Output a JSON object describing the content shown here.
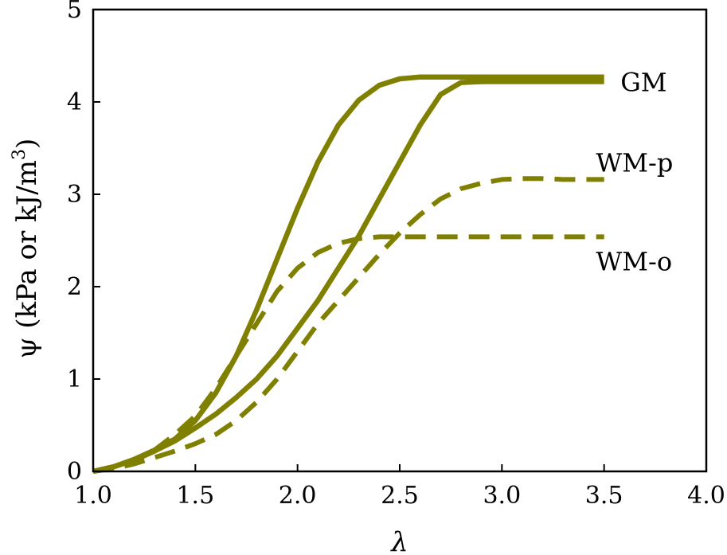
{
  "chart_data": {
    "type": "line",
    "xlabel": "λ",
    "ylabel_main": "ψ (kPa or kJ/m",
    "ylabel_sup": "3",
    "ylabel_tail": ")",
    "xlim": [
      1.0,
      4.0
    ],
    "ylim": [
      0,
      5
    ],
    "x_ticks": [
      "1.0",
      "1.5",
      "2.0",
      "2.5",
      "3.0",
      "3.5",
      "4.0"
    ],
    "y_ticks": [
      "0",
      "1",
      "2",
      "3",
      "4",
      "5"
    ],
    "grid": false,
    "color": "#808000",
    "series": [
      {
        "name": "GM",
        "style": "solid",
        "group": "GM",
        "points": [
          [
            1.0,
            0
          ],
          [
            1.1,
            0.05
          ],
          [
            1.2,
            0.13
          ],
          [
            1.3,
            0.23
          ],
          [
            1.4,
            0.35
          ],
          [
            1.5,
            0.55
          ],
          [
            1.6,
            0.85
          ],
          [
            1.7,
            1.25
          ],
          [
            1.8,
            1.75
          ],
          [
            1.9,
            2.3
          ],
          [
            2.0,
            2.85
          ],
          [
            2.1,
            3.35
          ],
          [
            2.2,
            3.75
          ],
          [
            2.3,
            4.02
          ],
          [
            2.4,
            4.18
          ],
          [
            2.5,
            4.25
          ],
          [
            2.6,
            4.27
          ],
          [
            2.8,
            4.27
          ],
          [
            3.0,
            4.27
          ],
          [
            3.2,
            4.27
          ],
          [
            3.5,
            4.27
          ]
        ]
      },
      {
        "name": "GM",
        "style": "solid",
        "group": "GM",
        "points": [
          [
            1.0,
            0
          ],
          [
            1.1,
            0.05
          ],
          [
            1.2,
            0.12
          ],
          [
            1.3,
            0.22
          ],
          [
            1.4,
            0.33
          ],
          [
            1.5,
            0.47
          ],
          [
            1.6,
            0.62
          ],
          [
            1.7,
            0.8
          ],
          [
            1.8,
            1.0
          ],
          [
            1.9,
            1.25
          ],
          [
            2.0,
            1.55
          ],
          [
            2.1,
            1.85
          ],
          [
            2.2,
            2.2
          ],
          [
            2.3,
            2.55
          ],
          [
            2.4,
            2.95
          ],
          [
            2.5,
            3.35
          ],
          [
            2.6,
            3.75
          ],
          [
            2.7,
            4.08
          ],
          [
            2.8,
            4.21
          ],
          [
            2.9,
            4.22
          ],
          [
            3.0,
            4.22
          ],
          [
            3.2,
            4.22
          ],
          [
            3.5,
            4.22
          ]
        ]
      },
      {
        "name": "WM-p",
        "style": "dashed",
        "group": "WM-p",
        "points": [
          [
            1.0,
            0
          ],
          [
            1.1,
            0.03
          ],
          [
            1.2,
            0.08
          ],
          [
            1.3,
            0.15
          ],
          [
            1.4,
            0.22
          ],
          [
            1.5,
            0.3
          ],
          [
            1.6,
            0.4
          ],
          [
            1.7,
            0.55
          ],
          [
            1.8,
            0.75
          ],
          [
            1.9,
            1.0
          ],
          [
            2.0,
            1.3
          ],
          [
            2.1,
            1.6
          ],
          [
            2.2,
            1.85
          ],
          [
            2.3,
            2.1
          ],
          [
            2.4,
            2.35
          ],
          [
            2.5,
            2.58
          ],
          [
            2.6,
            2.78
          ],
          [
            2.7,
            2.95
          ],
          [
            2.8,
            3.06
          ],
          [
            2.9,
            3.12
          ],
          [
            3.0,
            3.16
          ],
          [
            3.1,
            3.17
          ],
          [
            3.2,
            3.17
          ],
          [
            3.3,
            3.16
          ],
          [
            3.5,
            3.16
          ]
        ]
      },
      {
        "name": "WM-o",
        "style": "dashed",
        "group": "WM-o",
        "points": [
          [
            1.0,
            0
          ],
          [
            1.1,
            0.04
          ],
          [
            1.2,
            0.12
          ],
          [
            1.3,
            0.23
          ],
          [
            1.4,
            0.4
          ],
          [
            1.5,
            0.6
          ],
          [
            1.6,
            0.9
          ],
          [
            1.7,
            1.25
          ],
          [
            1.8,
            1.6
          ],
          [
            1.9,
            1.95
          ],
          [
            2.0,
            2.2
          ],
          [
            2.1,
            2.37
          ],
          [
            2.2,
            2.47
          ],
          [
            2.3,
            2.52
          ],
          [
            2.4,
            2.54
          ],
          [
            2.5,
            2.54
          ],
          [
            2.7,
            2.54
          ],
          [
            3.0,
            2.54
          ],
          [
            3.3,
            2.54
          ],
          [
            3.5,
            2.54
          ]
        ]
      }
    ],
    "labels": [
      {
        "text": "GM",
        "x": 3.58,
        "y": 4.22
      },
      {
        "text": "WM-p",
        "x": 3.46,
        "y": 3.35
      },
      {
        "text": "WM-o",
        "x": 3.46,
        "y": 2.28
      }
    ]
  }
}
